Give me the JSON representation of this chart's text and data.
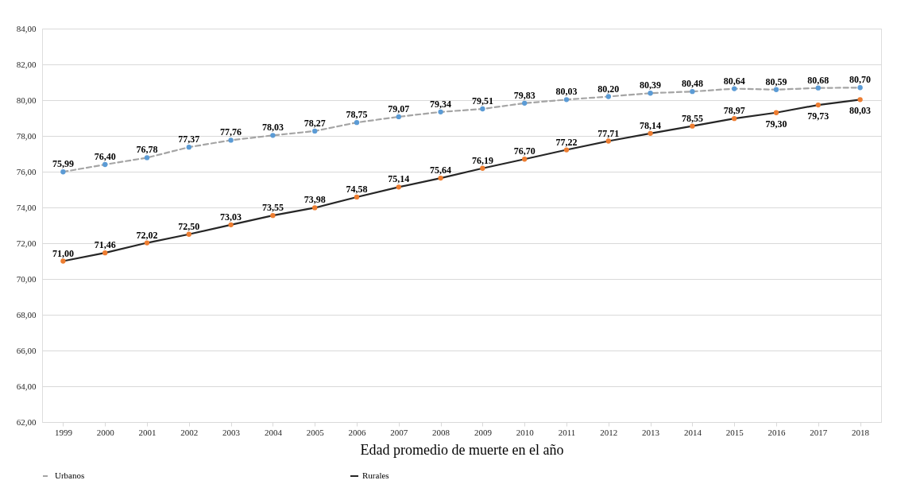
{
  "chart_data": {
    "type": "line",
    "xlabel": "Edad promedio de muerte en el año",
    "categories": [
      "1999",
      "2000",
      "2001",
      "2002",
      "2003",
      "2004",
      "2005",
      "2006",
      "2007",
      "2008",
      "2009",
      "2010",
      "2011",
      "2012",
      "2013",
      "2014",
      "2015",
      "2016",
      "2017",
      "2018"
    ],
    "series": [
      {
        "name": "Urbanos",
        "color": "#a5a5a5",
        "line_style": "dashed",
        "colors": [
          "#5b9bd5",
          "#5b9bd5",
          "#5b9bd5",
          "#5b9bd5",
          "#5b9bd5",
          "#5b9bd5",
          "#5b9bd5",
          "#5b9bd5",
          "#5b9bd5",
          "#5b9bd5",
          "#5b9bd5",
          "#5b9bd5",
          "#5b9bd5",
          "#5b9bd5",
          "#5b9bd5",
          "#5b9bd5",
          "#5b9bd5",
          "#5b9bd5",
          "#5b9bd5",
          "#5b9bd5"
        ],
        "values": [
          75.99,
          76.4,
          76.78,
          77.37,
          77.76,
          78.03,
          78.27,
          78.75,
          79.07,
          79.34,
          79.51,
          79.83,
          80.03,
          80.2,
          80.39,
          80.48,
          80.64,
          80.59,
          80.68,
          80.7
        ],
        "value_labels": [
          "75,99",
          "76,40",
          "76,78",
          "77,37",
          "77,76",
          "78,03",
          "78,27",
          "78,75",
          "79,07",
          "79,34",
          "79,51",
          "79,83",
          "80,03",
          "80,20",
          "80,39",
          "80,48",
          "80,64",
          "80,59",
          "80,68",
          "80,70"
        ]
      },
      {
        "name": "Rurales",
        "color": "#262626",
        "line_style": "solid",
        "colors": [
          "#ed7d31",
          "#ed7d31",
          "#ed7d31",
          "#ed7d31",
          "#ed7d31",
          "#ed7d31",
          "#ed7d31",
          "#ed7d31",
          "#ed7d31",
          "#ed7d31",
          "#ed7d31",
          "#ed7d31",
          "#ed7d31",
          "#ed7d31",
          "#ed7d31",
          "#ed7d31",
          "#ed7d31",
          "#ed7d31",
          "#ed7d31",
          "#ed7d31"
        ],
        "values": [
          71.0,
          71.46,
          72.02,
          72.5,
          73.03,
          73.55,
          73.98,
          74.58,
          75.14,
          75.64,
          76.19,
          76.7,
          77.22,
          77.71,
          78.14,
          78.55,
          78.97,
          79.3,
          79.73,
          80.03
        ],
        "value_labels": [
          "71,00",
          "71,46",
          "72,02",
          "72,50",
          "73,03",
          "73,55",
          "73,98",
          "74,58",
          "75,14",
          "75,64",
          "76,19",
          "76,70",
          "77,22",
          "77,71",
          "78,14",
          "78,55",
          "78,97",
          "79,30",
          "79,73",
          "80,03"
        ]
      }
    ],
    "ylim": [
      62,
      84
    ],
    "yticks": [
      {
        "value": 62,
        "label": "62,00"
      },
      {
        "value": 64,
        "label": "64,00"
      },
      {
        "value": 66,
        "label": "66,00"
      },
      {
        "value": 68,
        "label": "68,00"
      },
      {
        "value": 70,
        "label": "70,00"
      },
      {
        "value": 72,
        "label": "72,00"
      },
      {
        "value": 74,
        "label": "74,00"
      },
      {
        "value": 76,
        "label": "76,00"
      },
      {
        "value": 78,
        "label": "78,00"
      },
      {
        "value": 80,
        "label": "80,00"
      },
      {
        "value": 82,
        "label": "82,00"
      },
      {
        "value": 84,
        "label": "84,00"
      }
    ],
    "grid": "y",
    "legend": "bottom",
    "marker": "circle"
  }
}
